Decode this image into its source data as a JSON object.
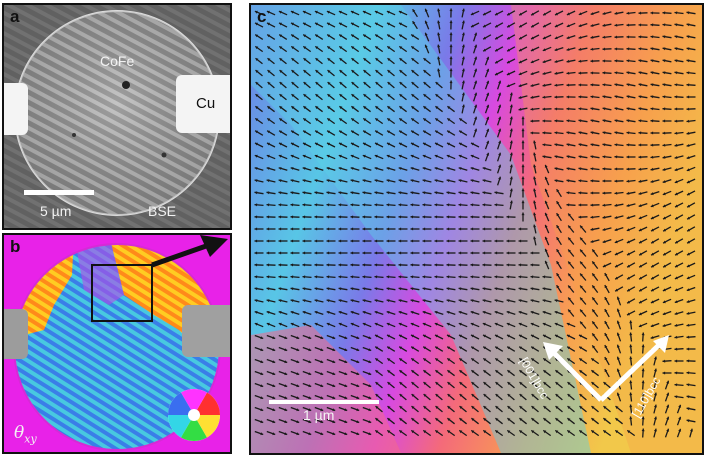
{
  "figure": {
    "panel_a": {
      "label": "a",
      "material_label": "CoFe",
      "contact_label": "Cu",
      "scalebar_label": "5 µm",
      "mode_label": "BSE"
    },
    "panel_b": {
      "label": "b",
      "angle_symbol": "θ",
      "angle_subscript": "xy"
    },
    "panel_c": {
      "label": "c",
      "scalebar_label": "1 µm",
      "direction_label_1": "[001]bcc",
      "direction_label_2": "[110]bcc"
    }
  }
}
